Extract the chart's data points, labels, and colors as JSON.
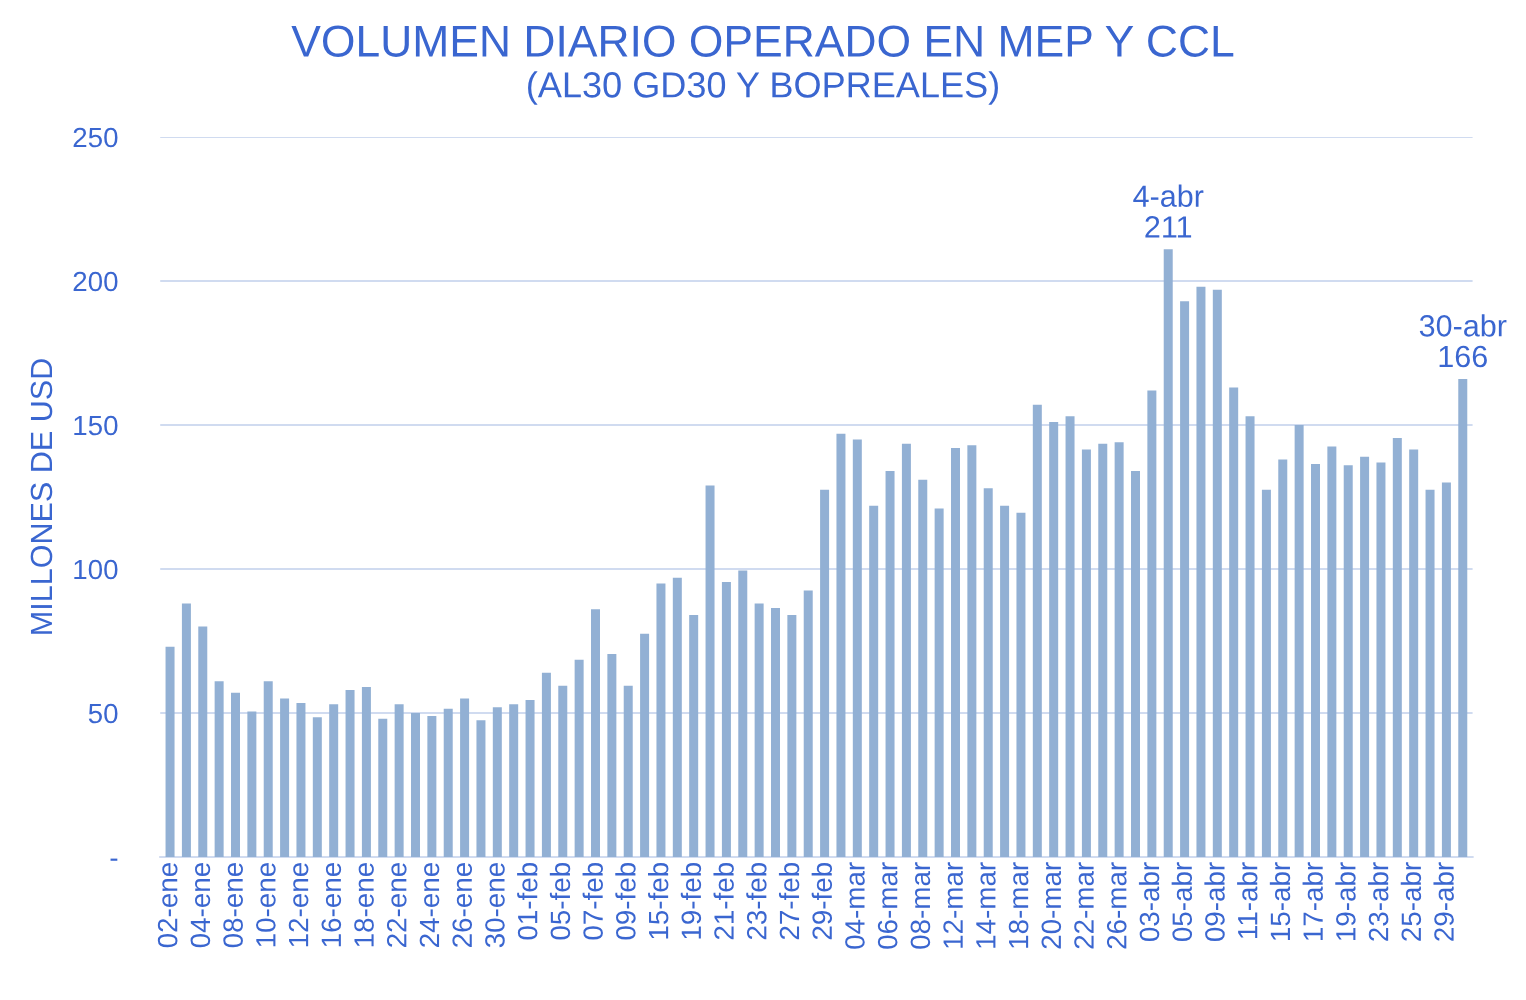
{
  "chart_data": {
    "type": "bar",
    "title": "VOLUMEN DIARIO OPERADO EN MEP Y CCL",
    "subtitle": "(AL30 GD30 Y BOPREALES)",
    "ylabel": "MILLONES DE USD",
    "categories": [
      "02-ene",
      null,
      "04-ene",
      null,
      "08-ene",
      null,
      "10-ene",
      null,
      "12-ene",
      null,
      "16-ene",
      null,
      "18-ene",
      null,
      "22-ene",
      null,
      "24-ene",
      null,
      "26-ene",
      null,
      "30-ene",
      null,
      "01-feb",
      null,
      "05-feb",
      null,
      "07-feb",
      null,
      "09-feb",
      null,
      "15-feb",
      null,
      "19-feb",
      null,
      "21-feb",
      null,
      "23-feb",
      null,
      "27-feb",
      null,
      "29-feb",
      null,
      "04-mar",
      null,
      "06-mar",
      null,
      "08-mar",
      null,
      "12-mar",
      null,
      "14-mar",
      null,
      "18-mar",
      null,
      "20-mar",
      null,
      "22-mar",
      null,
      "26-mar",
      null,
      "03-abr",
      null,
      "05-abr",
      null,
      "09-abr",
      null,
      "11-abr",
      null,
      "15-abr",
      null,
      "17-abr",
      null,
      "19-abr",
      null,
      "23-abr",
      null,
      "25-abr",
      null,
      "29-abr",
      null
    ],
    "values": [
      73,
      88,
      80,
      61,
      57,
      50.5,
      61,
      55,
      53.5,
      48.5,
      53,
      58,
      59,
      48,
      53,
      50,
      49,
      51.5,
      55,
      47.5,
      52,
      53,
      54.5,
      64,
      59.5,
      68.5,
      86,
      70.5,
      59.5,
      77.5,
      95,
      97,
      84,
      129,
      95.5,
      99.5,
      88,
      86.5,
      84,
      92.5,
      127.5,
      147,
      145,
      122,
      134,
      143.5,
      131,
      121,
      142,
      143,
      128,
      122,
      119.5,
      157,
      151,
      153,
      141.5,
      143.5,
      144,
      134,
      162,
      211,
      193,
      198,
      197,
      163,
      153,
      127.5,
      138,
      150,
      136.5,
      142.5,
      136,
      139,
      137,
      145.5,
      141.5,
      127.5,
      130,
      166
    ],
    "value_labels": [
      null,
      null,
      null,
      null,
      null,
      null,
      null,
      null,
      null,
      null,
      null,
      null,
      null,
      null,
      null,
      null,
      null,
      null,
      null,
      null,
      null,
      null,
      null,
      null,
      null,
      null,
      null,
      null,
      null,
      null,
      null,
      null,
      null,
      null,
      null,
      null,
      null,
      null,
      null,
      null,
      null,
      null,
      null,
      null,
      null,
      null,
      null,
      null,
      null,
      null,
      null,
      null,
      null,
      null,
      null,
      null,
      null,
      null,
      null,
      null,
      null,
      "4-abr\n211",
      null,
      null,
      null,
      null,
      null,
      null,
      null,
      null,
      null,
      null,
      null,
      null,
      null,
      null,
      null,
      null,
      null,
      "30-abr\n166"
    ],
    "color": "#92b0d4",
    "ylim": [
      0,
      250
    ],
    "yticks": [
      {
        "value": 0,
        "label": "-"
      },
      50,
      100,
      150,
      200,
      250
    ],
    "grid": "y"
  }
}
